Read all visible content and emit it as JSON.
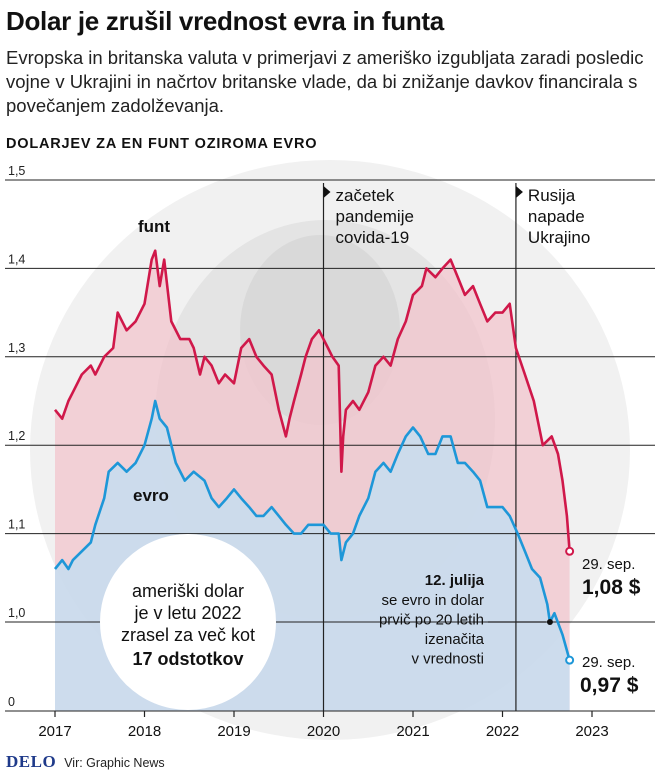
{
  "title": "Dolar je zrušil vrednost evra in funta",
  "subtitle": "Evropska in britanska valuta v primerjavi z ameriško izgubljata zaradi posledic vojne v Ukrajini in načrtov britanske vlade, da bi znižanje davkov financirala s povečanjem zadolževanja.",
  "kicker": "DOLARJEV ZA EN FUNT OZIROMA EVRO",
  "footer": {
    "logo": "DELO",
    "source": "Vir: Graphic News"
  },
  "colors": {
    "funt": "#d0184a",
    "evro": "#1e97d8",
    "funt_fill": "#f2c4cc",
    "evro_fill": "#c5ddf0",
    "background": "#ffffff",
    "grid": "#222222"
  },
  "chart_data": {
    "type": "line",
    "ylim": [
      0,
      1.5
    ],
    "y_ticks": [
      "1,5",
      "1,4",
      "1,3",
      "1,2",
      "1,1",
      "1,0",
      "0"
    ],
    "y_tick_values": [
      1.5,
      1.4,
      1.3,
      1.2,
      1.1,
      1.0,
      0.93
    ],
    "axis_note": "broken y-axis between 0 and 1,0",
    "x_ticks": [
      "2017",
      "2018",
      "2019",
      "2020",
      "2021",
      "2022",
      "2023"
    ],
    "x_tick_values": [
      2017,
      2018,
      2019,
      2020,
      2021,
      2022,
      2023
    ],
    "series": [
      {
        "name": "funt",
        "x": [
          2017.0,
          2017.08,
          2017.15,
          2017.2,
          2017.3,
          2017.4,
          2017.45,
          2017.55,
          2017.65,
          2017.7,
          2017.8,
          2017.9,
          2018.0,
          2018.08,
          2018.12,
          2018.17,
          2018.22,
          2018.3,
          2018.4,
          2018.5,
          2018.55,
          2018.62,
          2018.67,
          2018.75,
          2018.83,
          2018.9,
          2019.0,
          2019.08,
          2019.17,
          2019.25,
          2019.33,
          2019.42,
          2019.5,
          2019.58,
          2019.62,
          2019.67,
          2019.75,
          2019.8,
          2019.87,
          2019.95,
          2020.05,
          2020.1,
          2020.17,
          2020.2,
          2020.22,
          2020.25,
          2020.33,
          2020.4,
          2020.5,
          2020.58,
          2020.67,
          2020.75,
          2020.83,
          2020.92,
          2021.0,
          2021.1,
          2021.15,
          2021.25,
          2021.33,
          2021.42,
          2021.5,
          2021.58,
          2021.67,
          2021.75,
          2021.83,
          2021.92,
          2022.0,
          2022.08,
          2022.15,
          2022.25,
          2022.35,
          2022.45,
          2022.55,
          2022.62,
          2022.67,
          2022.72,
          2022.75
        ],
        "values": [
          1.24,
          1.23,
          1.25,
          1.26,
          1.28,
          1.29,
          1.28,
          1.3,
          1.31,
          1.35,
          1.33,
          1.34,
          1.36,
          1.41,
          1.42,
          1.38,
          1.41,
          1.34,
          1.32,
          1.32,
          1.31,
          1.28,
          1.3,
          1.29,
          1.27,
          1.28,
          1.27,
          1.31,
          1.32,
          1.3,
          1.29,
          1.28,
          1.24,
          1.21,
          1.23,
          1.25,
          1.28,
          1.3,
          1.32,
          1.33,
          1.31,
          1.3,
          1.29,
          1.17,
          1.21,
          1.24,
          1.25,
          1.24,
          1.26,
          1.29,
          1.3,
          1.29,
          1.32,
          1.34,
          1.37,
          1.38,
          1.4,
          1.39,
          1.4,
          1.41,
          1.39,
          1.37,
          1.38,
          1.36,
          1.34,
          1.35,
          1.35,
          1.36,
          1.31,
          1.28,
          1.25,
          1.2,
          1.21,
          1.19,
          1.16,
          1.12,
          1.08
        ]
      },
      {
        "name": "evro",
        "x": [
          2017.0,
          2017.08,
          2017.15,
          2017.2,
          2017.3,
          2017.4,
          2017.45,
          2017.55,
          2017.6,
          2017.7,
          2017.8,
          2017.9,
          2018.0,
          2018.08,
          2018.12,
          2018.17,
          2018.25,
          2018.35,
          2018.45,
          2018.55,
          2018.67,
          2018.75,
          2018.83,
          2018.92,
          2019.0,
          2019.08,
          2019.17,
          2019.25,
          2019.33,
          2019.42,
          2019.5,
          2019.58,
          2019.67,
          2019.75,
          2019.83,
          2019.92,
          2020.0,
          2020.08,
          2020.17,
          2020.2,
          2020.25,
          2020.33,
          2020.4,
          2020.5,
          2020.58,
          2020.67,
          2020.75,
          2020.83,
          2020.92,
          2021.0,
          2021.08,
          2021.17,
          2021.25,
          2021.33,
          2021.42,
          2021.5,
          2021.58,
          2021.67,
          2021.75,
          2021.83,
          2021.92,
          2022.0,
          2022.08,
          2022.17,
          2022.25,
          2022.33,
          2022.42,
          2022.5,
          2022.53,
          2022.58,
          2022.67,
          2022.75
        ],
        "values": [
          1.06,
          1.07,
          1.06,
          1.07,
          1.08,
          1.09,
          1.11,
          1.14,
          1.17,
          1.18,
          1.17,
          1.18,
          1.2,
          1.23,
          1.25,
          1.23,
          1.22,
          1.18,
          1.16,
          1.17,
          1.16,
          1.14,
          1.13,
          1.14,
          1.15,
          1.14,
          1.13,
          1.12,
          1.12,
          1.13,
          1.12,
          1.11,
          1.1,
          1.1,
          1.11,
          1.11,
          1.11,
          1.1,
          1.1,
          1.07,
          1.09,
          1.1,
          1.12,
          1.14,
          1.17,
          1.18,
          1.17,
          1.19,
          1.21,
          1.22,
          1.21,
          1.19,
          1.19,
          1.21,
          1.21,
          1.18,
          1.18,
          1.17,
          1.16,
          1.13,
          1.13,
          1.13,
          1.12,
          1.1,
          1.08,
          1.06,
          1.05,
          1.02,
          1.0,
          1.01,
          0.99,
          0.97
        ]
      }
    ],
    "series_labels": [
      "funt",
      "evro"
    ],
    "events": [
      {
        "x": 2020.0,
        "label": [
          "začetek",
          "pandemije",
          "covida-19"
        ]
      },
      {
        "x": 2022.15,
        "label": [
          "Rusija",
          "napade",
          "Ukrajino"
        ]
      }
    ],
    "parity_note": {
      "x": 2022.53,
      "y": 1.0,
      "date": "12. julija",
      "lines": [
        "se evro in dolar",
        "prvič po 20 letih",
        "izenačita",
        "v vrednosti"
      ]
    },
    "end_labels": [
      {
        "series": "funt",
        "date": "29. sep.",
        "value": "1,08 $"
      },
      {
        "series": "evro",
        "date": "29. sep.",
        "value": "0,97 $"
      }
    ],
    "callout": {
      "lines": [
        "ameriški dolar",
        "je v letu 2022",
        "zrasel za več kot"
      ],
      "bold": "17 odstotkov"
    }
  }
}
